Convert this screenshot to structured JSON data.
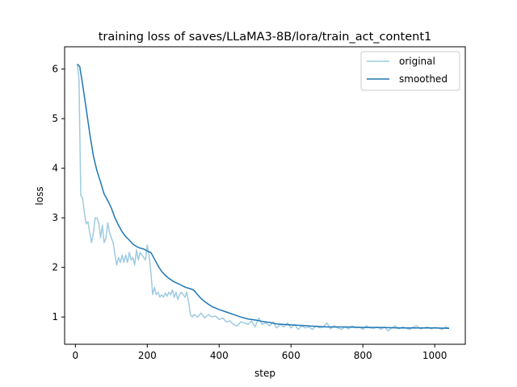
{
  "chart_data": {
    "type": "line",
    "title": "training loss of saves/LLaMA3-8B/lora/train_act_content1",
    "xlabel": "step",
    "ylabel": "loss",
    "xlim": [
      -30,
      1085
    ],
    "ylim": [
      0.45,
      6.45
    ],
    "xticks": [
      0,
      200,
      400,
      600,
      800,
      1000
    ],
    "yticks": [
      1,
      2,
      3,
      4,
      5,
      6
    ],
    "grid": false,
    "legend_position": "top-right",
    "series": [
      {
        "name": "original",
        "color": "#9ecae1",
        "x": [
          5,
          10,
          15,
          20,
          25,
          30,
          35,
          40,
          45,
          50,
          55,
          60,
          65,
          70,
          75,
          80,
          85,
          90,
          95,
          100,
          105,
          110,
          115,
          120,
          125,
          130,
          135,
          140,
          145,
          150,
          155,
          160,
          165,
          170,
          175,
          180,
          185,
          190,
          195,
          200,
          205,
          210,
          215,
          220,
          225,
          230,
          235,
          240,
          245,
          250,
          255,
          260,
          265,
          270,
          275,
          280,
          285,
          290,
          295,
          300,
          305,
          310,
          315,
          320,
          325,
          330,
          340,
          350,
          360,
          370,
          380,
          390,
          400,
          410,
          420,
          430,
          440,
          450,
          460,
          470,
          480,
          490,
          500,
          510,
          520,
          530,
          540,
          550,
          560,
          570,
          580,
          590,
          600,
          610,
          620,
          630,
          640,
          650,
          660,
          670,
          680,
          690,
          700,
          710,
          720,
          730,
          740,
          750,
          760,
          770,
          780,
          790,
          800,
          810,
          820,
          830,
          840,
          850,
          860,
          870,
          880,
          890,
          900,
          910,
          920,
          930,
          940,
          950,
          960,
          970,
          980,
          990,
          1000,
          1010,
          1020,
          1030,
          1040
        ],
        "y": [
          6.1,
          5.8,
          3.45,
          3.4,
          3.1,
          2.88,
          2.92,
          2.7,
          2.5,
          2.7,
          3.0,
          3.0,
          2.9,
          2.6,
          2.85,
          2.5,
          2.6,
          2.9,
          2.7,
          2.6,
          2.5,
          2.25,
          2.05,
          2.2,
          2.1,
          2.25,
          2.1,
          2.25,
          2.1,
          2.3,
          2.15,
          2.2,
          2.05,
          2.35,
          2.15,
          2.3,
          2.25,
          2.2,
          2.15,
          2.45,
          2.25,
          1.9,
          1.45,
          1.6,
          1.45,
          1.5,
          1.4,
          1.45,
          1.4,
          1.48,
          1.42,
          1.5,
          1.45,
          1.55,
          1.4,
          1.5,
          1.35,
          1.45,
          1.5,
          1.45,
          1.4,
          1.5,
          1.3,
          1.05,
          1.0,
          1.05,
          1.0,
          1.08,
          0.98,
          1.05,
          1.0,
          1.02,
          0.95,
          0.98,
          0.9,
          0.92,
          0.85,
          0.82,
          0.9,
          0.88,
          0.85,
          0.92,
          0.8,
          0.98,
          0.85,
          0.88,
          0.82,
          0.9,
          0.78,
          0.85,
          0.8,
          0.88,
          0.78,
          0.85,
          0.75,
          0.82,
          0.78,
          0.8,
          0.75,
          0.82,
          0.78,
          0.8,
          0.88,
          0.76,
          0.82,
          0.78,
          0.75,
          0.8,
          0.76,
          0.82,
          0.78,
          0.8,
          0.75,
          0.82,
          0.78,
          0.77,
          0.8,
          0.75,
          0.8,
          0.72,
          0.78,
          0.82,
          0.76,
          0.8,
          0.78,
          0.75,
          0.8,
          0.82,
          0.76,
          0.78,
          0.8,
          0.76,
          0.79,
          0.78,
          0.75,
          0.8,
          0.78
        ]
      },
      {
        "name": "smoothed",
        "color": "#1f77b4",
        "x": [
          5,
          12,
          20,
          30,
          40,
          50,
          60,
          70,
          80,
          90,
          100,
          110,
          120,
          130,
          140,
          150,
          160,
          170,
          180,
          190,
          200,
          210,
          220,
          230,
          240,
          250,
          260,
          270,
          280,
          290,
          300,
          310,
          320,
          330,
          340,
          350,
          360,
          370,
          380,
          390,
          400,
          420,
          440,
          460,
          480,
          500,
          520,
          540,
          560,
          580,
          600,
          650,
          700,
          750,
          800,
          850,
          900,
          950,
          1000,
          1040
        ],
        "y": [
          6.1,
          6.05,
          5.7,
          5.2,
          4.7,
          4.25,
          3.95,
          3.72,
          3.48,
          3.35,
          3.2,
          3.0,
          2.85,
          2.72,
          2.62,
          2.55,
          2.47,
          2.42,
          2.39,
          2.37,
          2.33,
          2.3,
          2.17,
          2.03,
          1.92,
          1.84,
          1.78,
          1.73,
          1.69,
          1.66,
          1.62,
          1.59,
          1.57,
          1.54,
          1.45,
          1.37,
          1.31,
          1.26,
          1.21,
          1.18,
          1.15,
          1.1,
          1.05,
          1.0,
          0.96,
          0.94,
          0.91,
          0.89,
          0.86,
          0.85,
          0.84,
          0.82,
          0.8,
          0.8,
          0.79,
          0.79,
          0.78,
          0.78,
          0.78,
          0.77
        ]
      }
    ]
  }
}
